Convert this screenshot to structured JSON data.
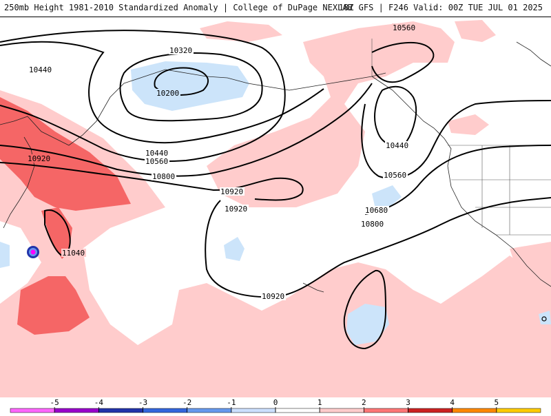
{
  "header": {
    "left": "250mb Height 1981-2010 Standardized Anomaly | College of DuPage NEXLAB",
    "right": "18Z GFS | F246 Valid: 00Z TUE JUL 01 2025"
  },
  "contours": [
    {
      "label": "10200"
    },
    {
      "label": "10320"
    },
    {
      "label": "10440"
    },
    {
      "label": "10440"
    },
    {
      "label": "10440"
    },
    {
      "label": "10560"
    },
    {
      "label": "10560"
    },
    {
      "label": "10560"
    },
    {
      "label": "10680"
    },
    {
      "label": "10800"
    },
    {
      "label": "10800"
    },
    {
      "label": "10920"
    },
    {
      "label": "10920"
    },
    {
      "label": "10920"
    },
    {
      "label": "10920"
    },
    {
      "label": "11040"
    }
  ],
  "colorbar": {
    "ticks": [
      "-5",
      "-4",
      "-3",
      "-2",
      "-1",
      "0",
      "1",
      "2",
      "3",
      "4",
      "5"
    ],
    "colors": [
      "#ff66ff",
      "#9900cc",
      "#2233aa",
      "#3366dd",
      "#6699ee",
      "#cce0ff",
      "#ffffff",
      "#ffcccc",
      "#ff7777",
      "#cc2222",
      "#ff8800",
      "#ffcc00"
    ]
  },
  "colors": {
    "positive_1": "#ffcccc",
    "positive_2": "#f56666",
    "negative_1": "#cce4fa",
    "storm_marker": "#ff00ff"
  }
}
